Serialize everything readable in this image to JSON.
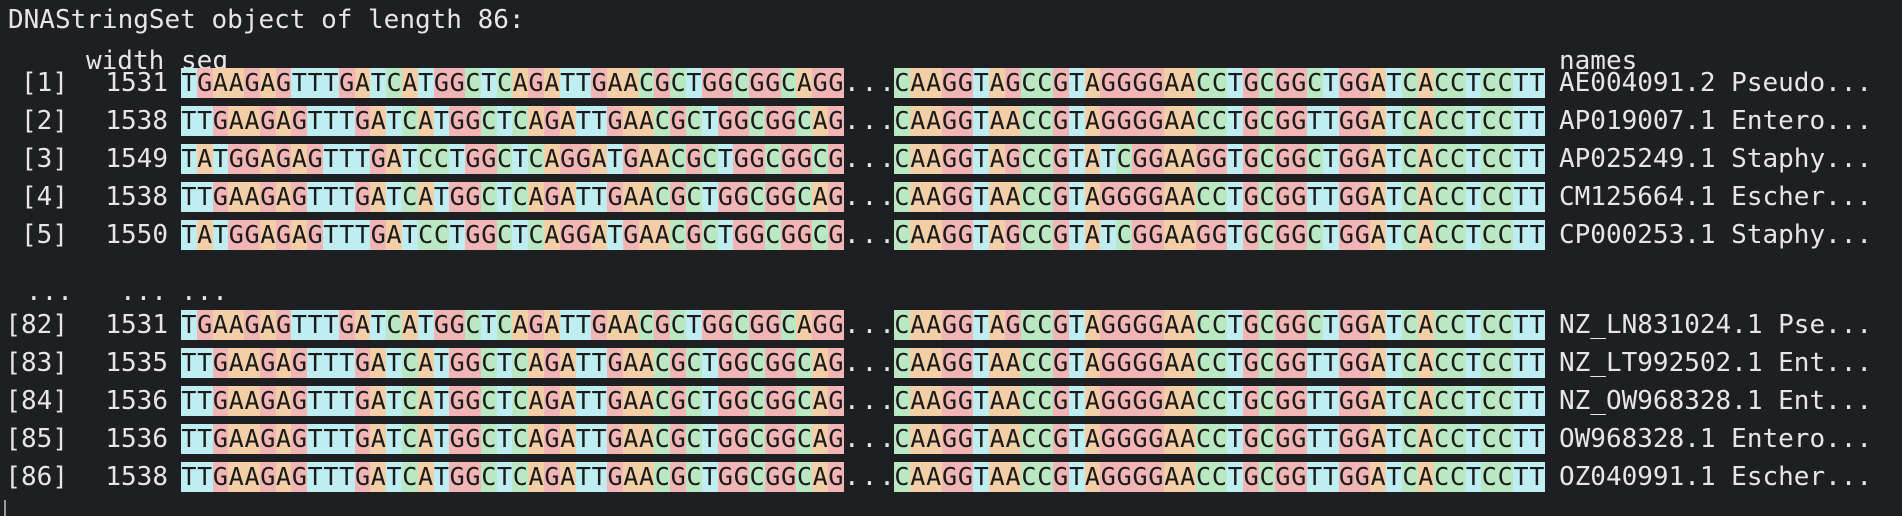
{
  "console": {
    "title": "DNAStringSet object of length 86:",
    "headers": {
      "width": "width",
      "seq": "seq",
      "names": "names"
    },
    "ellipsis_index": "...",
    "ellipsis_width": "...",
    "ellipsis_seq": "...",
    "seq_gap": "...",
    "rows": [
      {
        "index": "[1]",
        "width": "1531",
        "left": "TGAAGAGTTTGATCATGGCTCAGATTGAACGCTGGCGGCAGG",
        "right": "CAAGGTAGCCGTAGGGGAACCTGCGGCTGGATCACCTCCTT",
        "name": "AE004091.2 Pseudo..."
      },
      {
        "index": "[2]",
        "width": "1538",
        "left": "TTGAAGAGTTTGATCATGGCTCAGATTGAACGCTGGCGGCAG",
        "right": "CAAGGTAACCGTAGGGGAACCTGCGGTTGGATCACCTCCTT",
        "name": "AP019007.1 Entero..."
      },
      {
        "index": "[3]",
        "width": "1549",
        "left": "TATGGAGAGTTTGATCCTGGCTCAGGATGAACGCTGGCGGCG",
        "right": "CAAGGTAGCCGTATCGGAAGGTGCGGCTGGATCACCTCCTT",
        "name": "AP025249.1 Staphy..."
      },
      {
        "index": "[4]",
        "width": "1538",
        "left": "TTGAAGAGTTTGATCATGGCTCAGATTGAACGCTGGCGGCAG",
        "right": "CAAGGTAACCGTAGGGGAACCTGCGGTTGGATCACCTCCTT",
        "name": "CM125664.1 Escher..."
      },
      {
        "index": "[5]",
        "width": "1550",
        "left": "TATGGAGAGTTTGATCCTGGCTCAGGATGAACGCTGGCGGCG",
        "right": "CAAGGTAGCCGTATCGGAAGGTGCGGCTGGATCACCTCCTT",
        "name": "CP000253.1 Staphy..."
      },
      {
        "index": "[82]",
        "width": "1531",
        "left": "TGAAGAGTTTGATCATGGCTCAGATTGAACGCTGGCGGCAGG",
        "right": "CAAGGTAGCCGTAGGGGAACCTGCGGCTGGATCACCTCCTT",
        "name": "NZ_LN831024.1 Pse..."
      },
      {
        "index": "[83]",
        "width": "1535",
        "left": "TTGAAGAGTTTGATCATGGCTCAGATTGAACGCTGGCGGCAG",
        "right": "CAAGGTAACCGTAGGGGAACCTGCGGTTGGATCACCTCCTT",
        "name": "NZ_LT992502.1 Ent..."
      },
      {
        "index": "[84]",
        "width": "1536",
        "left": "TTGAAGAGTTTGATCATGGCTCAGATTGAACGCTGGCGGCAG",
        "right": "CAAGGTAACCGTAGGGGAACCTGCGGTTGGATCACCTCCTT",
        "name": "NZ_OW968328.1 Ent..."
      },
      {
        "index": "[85]",
        "width": "1536",
        "left": "TTGAAGAGTTTGATCATGGCTCAGATTGAACGCTGGCGGCAG",
        "right": "CAAGGTAACCGTAGGGGAACCTGCGGTTGGATCACCTCCTT",
        "name": "OW968328.1 Entero..."
      },
      {
        "index": "[86]",
        "width": "1538",
        "left": "TTGAAGAGTTTGATCATGGCTCAGATTGAACGCTGGCGGCAG",
        "right": "CAAGGTAACCGTAGGGGAACCTGCGGTTGGATCACCTCCTT",
        "name": "OZ040991.1 Escher..."
      }
    ],
    "base_colors": {
      "A": "#f3cfa7",
      "C": "#b9e8c2",
      "G": "#f2b5b5",
      "T": "#bfeef2"
    }
  }
}
